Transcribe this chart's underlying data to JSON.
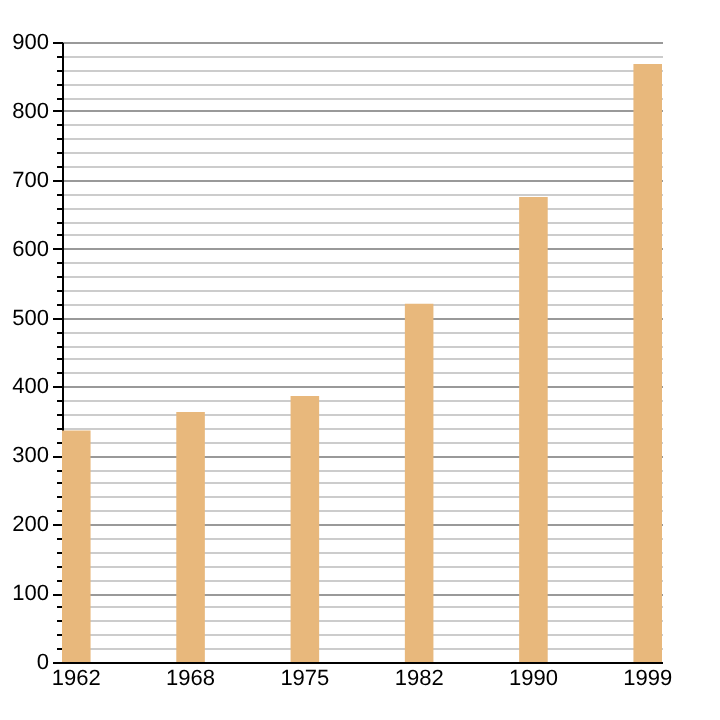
{
  "chart_data": {
    "type": "bar",
    "categories": [
      "1962",
      "1968",
      "1975",
      "1982",
      "1990",
      "1999"
    ],
    "values": [
      336,
      363,
      386,
      520,
      675,
      868
    ],
    "color": "#e8b87c",
    "ylim": [
      0,
      900
    ],
    "yticks": [
      0,
      {
        "value": 20,
        "label": null
      },
      {
        "value": 40,
        "label": null
      },
      {
        "value": 60,
        "label": null
      },
      {
        "value": 80,
        "label": null
      },
      100,
      {
        "value": 120,
        "label": null
      },
      {
        "value": 140,
        "label": null
      },
      {
        "value": 160,
        "label": null
      },
      {
        "value": 180,
        "label": null
      },
      200,
      {
        "value": 220,
        "label": null
      },
      {
        "value": 240,
        "label": null
      },
      {
        "value": 260,
        "label": null
      },
      {
        "value": 280,
        "label": null
      },
      300,
      {
        "value": 320,
        "label": null
      },
      {
        "value": 340,
        "label": null
      },
      {
        "value": 360,
        "label": null
      },
      {
        "value": 380,
        "label": null
      },
      400,
      {
        "value": 420,
        "label": null
      },
      {
        "value": 440,
        "label": null
      },
      {
        "value": 460,
        "label": null
      },
      {
        "value": 480,
        "label": null
      },
      500,
      {
        "value": 520,
        "label": null
      },
      {
        "value": 540,
        "label": null
      },
      {
        "value": 560,
        "label": null
      },
      {
        "value": 580,
        "label": null
      },
      600,
      {
        "value": 620,
        "label": null
      },
      {
        "value": 640,
        "label": null
      },
      {
        "value": 660,
        "label": null
      },
      {
        "value": 680,
        "label": null
      },
      700,
      {
        "value": 720,
        "label": null
      },
      {
        "value": 740,
        "label": null
      },
      {
        "value": 760,
        "label": null
      },
      {
        "value": 780,
        "label": null
      },
      800,
      {
        "value": 820,
        "label": null
      },
      {
        "value": 840,
        "label": null
      },
      {
        "value": 860,
        "label": null
      },
      {
        "value": 880,
        "label": null
      },
      900
    ],
    "grid": "y"
  }
}
